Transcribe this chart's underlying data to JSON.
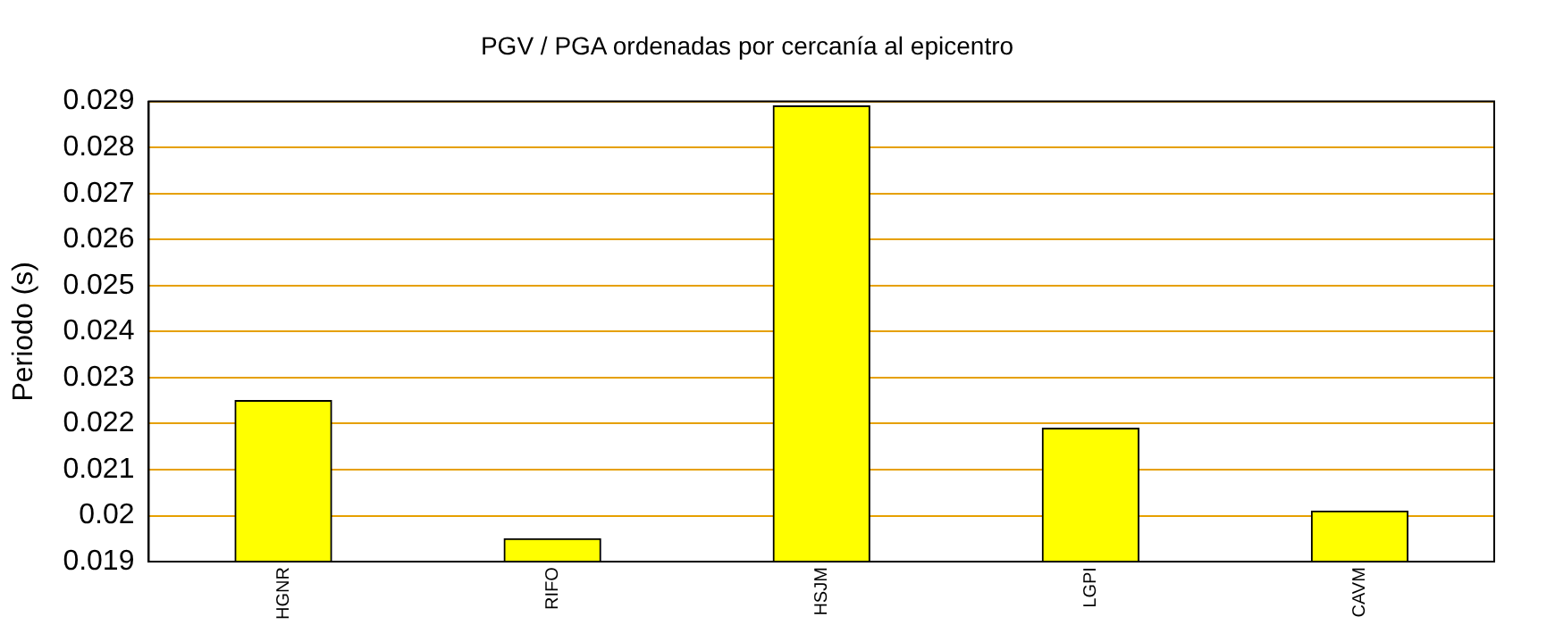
{
  "chart_data": {
    "type": "bar",
    "title": "PGV / PGA ordenadas por cercanía al epicentro",
    "ylabel": "Periodo (s)",
    "categories": [
      "HGNR",
      "RIFO",
      "HSJM",
      "LGPI",
      "CAVM"
    ],
    "values": [
      0.0225,
      0.0195,
      0.0289,
      0.0219,
      0.0201
    ],
    "color": "#ffff00",
    "ylim": [
      0.019,
      0.029
    ],
    "yticks": [
      0.019,
      0.02,
      0.021,
      0.022,
      0.023,
      0.024,
      0.025,
      0.026,
      0.027,
      0.028,
      0.029
    ],
    "grid": true,
    "legend": false
  }
}
